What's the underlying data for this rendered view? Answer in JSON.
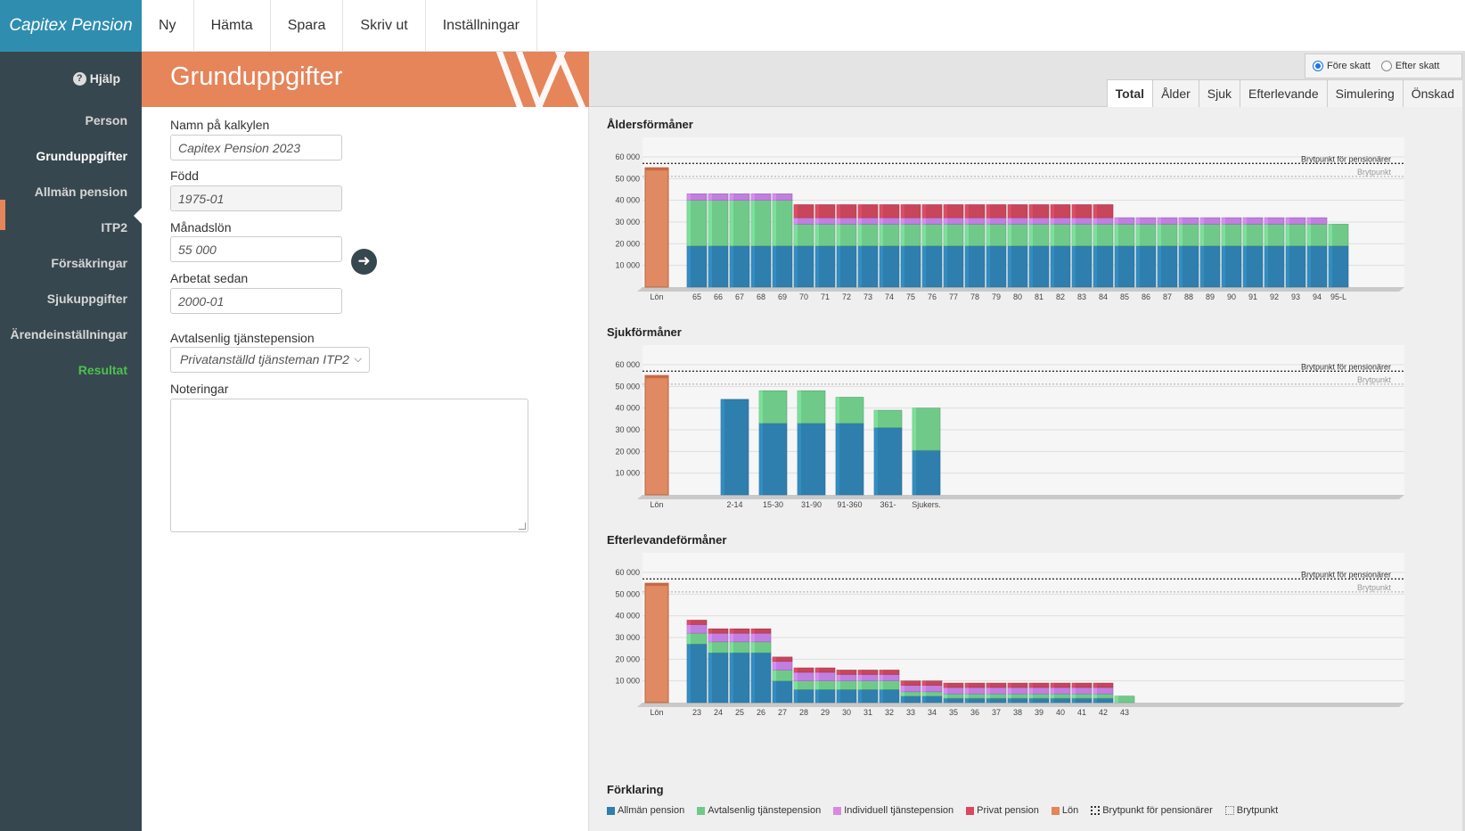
{
  "app": {
    "brand": "Capitex Pension"
  },
  "topmenu": [
    "Ny",
    "Hämta",
    "Spara",
    "Skriv ut",
    "Inställningar"
  ],
  "sidebar": {
    "help": "Hjälp",
    "items": [
      "Person",
      "Grunduppgifter",
      "Allmän pension",
      "ITP2",
      "Försäkringar",
      "Sjukuppgifter",
      "Ärendeinställningar",
      "Resultat"
    ],
    "active": "Grunduppgifter"
  },
  "form": {
    "title": "Grunduppgifter",
    "name_label": "Namn på kalkylen",
    "name_value": "Capitex Pension 2023",
    "born_label": "Född",
    "born_value": "1975-01",
    "salary_label": "Månadslön",
    "salary_value": "55 000",
    "worked_label": "Arbetat sedan",
    "worked_value": "2000-01",
    "agreement_label": "Avtalsenlig tjänstepension",
    "agreement_value": "Privatanställd tjänsteman ITP2",
    "notes_label": "Noteringar"
  },
  "results": {
    "tax_options": [
      "Före skatt",
      "Efter skatt"
    ],
    "tax_selected": "Före skatt",
    "tabs": [
      "Total",
      "Ålder",
      "Sjuk",
      "Efterlevande",
      "Simulering",
      "Önskad"
    ],
    "active_tab": "Total",
    "legend_title": "Förklaring",
    "legend": [
      {
        "label": "Allmän pension",
        "color": "#2e7fae"
      },
      {
        "label": "Avtalsenlig tjänstepension",
        "color": "#6fca8a"
      },
      {
        "label": "Individuell tjänstepension",
        "color": "#d98ae0"
      },
      {
        "label": "Privat pension",
        "color": "#d9485f"
      },
      {
        "label": "Lön",
        "color": "#e6845a"
      },
      {
        "label": "Brytpunkt för pensionärer",
        "style": "dotted-dark"
      },
      {
        "label": "Brytpunkt",
        "style": "dotted-light"
      }
    ]
  },
  "chart_data": [
    {
      "type": "bar",
      "title": "Åldersförmåner",
      "ylim": [
        0,
        60000
      ],
      "yticks": [
        "10 000",
        "20 000",
        "30 000",
        "40 000",
        "50 000",
        "60 000"
      ],
      "reference_lines": [
        {
          "label": "Brytpunkt för pensionärer",
          "value": 57000
        },
        {
          "label": "Brytpunkt",
          "value": 51000
        }
      ],
      "salary": {
        "label": "Lön",
        "value": 55000
      },
      "categories": [
        "65",
        "66",
        "67",
        "68",
        "69",
        "70",
        "71",
        "72",
        "73",
        "74",
        "75",
        "76",
        "77",
        "78",
        "79",
        "80",
        "81",
        "82",
        "83",
        "84",
        "85",
        "86",
        "87",
        "88",
        "89",
        "90",
        "91",
        "92",
        "93",
        "94",
        "95-L"
      ],
      "series": [
        {
          "name": "Allmän pension",
          "color": "#2e7fae",
          "values": [
            19000,
            19000,
            19000,
            19000,
            19000,
            19000,
            19000,
            19000,
            19000,
            19000,
            19000,
            19000,
            19000,
            19000,
            19000,
            19000,
            19000,
            19000,
            19000,
            19000,
            19000,
            19000,
            19000,
            19000,
            19000,
            19000,
            19000,
            19000,
            19000,
            19000,
            19000
          ]
        },
        {
          "name": "Avtalsenlig tjänstepension",
          "color": "#6fca8a",
          "values": [
            21000,
            21000,
            21000,
            21000,
            21000,
            10000,
            10000,
            10000,
            10000,
            10000,
            10000,
            10000,
            10000,
            10000,
            10000,
            10000,
            10000,
            10000,
            10000,
            10000,
            10000,
            10000,
            10000,
            10000,
            10000,
            10000,
            10000,
            10000,
            10000,
            10000,
            10000
          ]
        },
        {
          "name": "Individuell tjänstepension",
          "color": "#c27ee0",
          "values": [
            3000,
            3000,
            3000,
            3000,
            3000,
            3000,
            3000,
            3000,
            3000,
            3000,
            3000,
            3000,
            3000,
            3000,
            3000,
            3000,
            3000,
            3000,
            3000,
            3000,
            3000,
            3000,
            3000,
            3000,
            3000,
            3000,
            3000,
            3000,
            3000,
            3000,
            0
          ]
        },
        {
          "name": "Privat pension",
          "color": "#c8455a",
          "values": [
            0,
            0,
            0,
            0,
            0,
            6000,
            6000,
            6000,
            6000,
            6000,
            6000,
            6000,
            6000,
            6000,
            6000,
            6000,
            6000,
            6000,
            6000,
            6000,
            0,
            0,
            0,
            0,
            0,
            0,
            0,
            0,
            0,
            0,
            0
          ]
        }
      ]
    },
    {
      "type": "bar",
      "title": "Sjukförmåner",
      "ylim": [
        0,
        60000
      ],
      "yticks": [
        "10 000",
        "20 000",
        "30 000",
        "40 000",
        "50 000",
        "60 000"
      ],
      "reference_lines": [
        {
          "label": "Brytpunkt för pensionärer",
          "value": 57000
        },
        {
          "label": "Brytpunkt",
          "value": 51000
        }
      ],
      "salary": {
        "label": "Lön",
        "value": 55000
      },
      "categories": [
        "2-14",
        "15-30",
        "31-90",
        "91-360",
        "361-",
        "Sjukers."
      ],
      "series": [
        {
          "name": "Allmän pension",
          "color": "#2e7fae",
          "values": [
            44000,
            33000,
            33000,
            33000,
            31000,
            20500
          ]
        },
        {
          "name": "Avtalsenlig tjänstepension",
          "color": "#6fca8a",
          "values": [
            0,
            15000,
            15000,
            12000,
            8000,
            19500
          ]
        },
        {
          "name": "Individuell tjänstepension",
          "color": "#c27ee0",
          "values": [
            0,
            0,
            0,
            0,
            0,
            0
          ]
        },
        {
          "name": "Privat pension",
          "color": "#c8455a",
          "values": [
            0,
            0,
            0,
            0,
            0,
            0
          ]
        }
      ]
    },
    {
      "type": "bar",
      "title": "Efterlevandeförmåner",
      "ylim": [
        0,
        60000
      ],
      "yticks": [
        "10 000",
        "20 000",
        "30 000",
        "40 000",
        "50 000",
        "60 000"
      ],
      "reference_lines": [
        {
          "label": "Brytpunkt för pensionärer",
          "value": 57000
        },
        {
          "label": "Brytpunkt",
          "value": 51000
        }
      ],
      "salary": {
        "label": "Lön",
        "value": 55000
      },
      "categories": [
        "23",
        "24",
        "25",
        "26",
        "27",
        "28",
        "29",
        "30",
        "31",
        "32",
        "33",
        "34",
        "35",
        "36",
        "37",
        "38",
        "39",
        "40",
        "41",
        "42",
        "43"
      ],
      "series": [
        {
          "name": "Allmän pension",
          "color": "#2e7fae",
          "values": [
            27000,
            23000,
            23000,
            23000,
            10000,
            6000,
            6000,
            6000,
            6000,
            6000,
            3000,
            3000,
            2000,
            2000,
            2000,
            2000,
            2000,
            2000,
            2000,
            2000,
            0
          ]
        },
        {
          "name": "Avtalsenlig tjänstepension",
          "color": "#6fca8a",
          "values": [
            5000,
            5000,
            5000,
            5000,
            5000,
            4000,
            4000,
            4000,
            4000,
            4000,
            2000,
            2000,
            2000,
            2000,
            2000,
            2000,
            2000,
            2000,
            2000,
            2000,
            3000
          ]
        },
        {
          "name": "Individuell tjänstepension",
          "color": "#c27ee0",
          "values": [
            4000,
            4000,
            4000,
            4000,
            4000,
            4000,
            4000,
            3000,
            3000,
            3000,
            3000,
            3000,
            3000,
            3000,
            3000,
            3000,
            3000,
            3000,
            3000,
            3000,
            0
          ]
        },
        {
          "name": "Privat pension",
          "color": "#c8455a",
          "values": [
            2000,
            2000,
            2000,
            2000,
            2000,
            2000,
            2000,
            2000,
            2000,
            2000,
            2000,
            2000,
            2000,
            2000,
            2000,
            2000,
            2000,
            2000,
            2000,
            2000,
            0
          ]
        }
      ]
    }
  ]
}
